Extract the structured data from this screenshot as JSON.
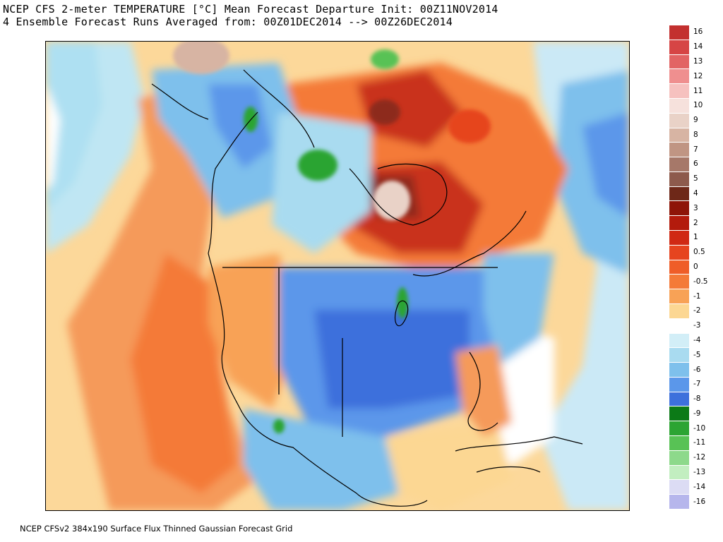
{
  "title": {
    "line1": "NCEP CFS 2-meter TEMPERATURE [°C] Mean Forecast Departure Init: 00Z11NOV2014",
    "line2": "4 Ensemble Forecast Runs Averaged from: 00Z01DEC2014 --> 00Z26DEC2014"
  },
  "footer": "NCEP CFSv2 384x190 Surface Flux Thinned Gaussian Forecast Grid",
  "legend": {
    "labels": [
      "16",
      "14",
      "13",
      "12",
      "11",
      "10",
      "9",
      "8",
      "7",
      "6",
      "5",
      "4",
      "3",
      "2",
      "1",
      "0.5",
      "0",
      "-0.5",
      "-1",
      "-2",
      "-3",
      "-4",
      "-5",
      "-6",
      "-7",
      "-8",
      "-9",
      "-10",
      "-11",
      "-12",
      "-13",
      "-14",
      "-16"
    ],
    "colors": [
      "#c3302f",
      "#d64545",
      "#e26464",
      "#ef8f8f",
      "#f6c1bf",
      "#f6e1dc",
      "#e9d2c7",
      "#d7b4a3",
      "#c09583",
      "#a67869",
      "#8d5a4c",
      "#6e2818",
      "#8e1508",
      "#b31b0c",
      "#d02914",
      "#e6441f",
      "#ef5d28",
      "#f47a38",
      "#f8a256",
      "#fcd793",
      "#ffffff",
      "#d2eef7",
      "#a9dbf0",
      "#7ec0ec",
      "#5b97ea",
      "#3d70dc",
      "#0c7a17",
      "#2ca433",
      "#58c255",
      "#8dd98b",
      "#c2eec0",
      "#dcdcf4",
      "#b6b6ec"
    ]
  },
  "map": {
    "region": "North America",
    "units": "°C departure"
  }
}
